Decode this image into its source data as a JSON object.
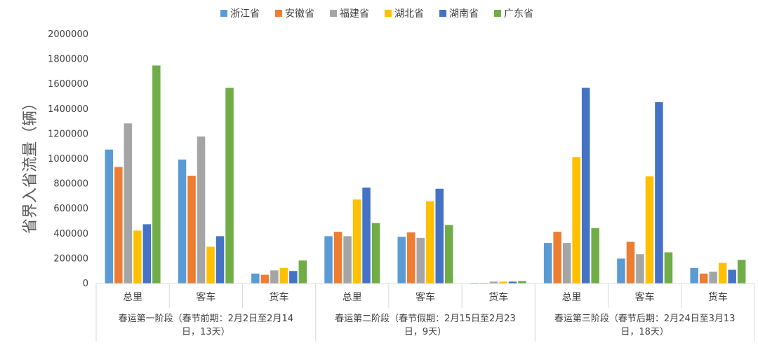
{
  "chart_data": {
    "type": "bar",
    "ylabel": "省界入省流量（辆）",
    "ylim": [
      0,
      2000000
    ],
    "yticks": [
      "0",
      "200000",
      "400000",
      "600000",
      "800000",
      "1000000",
      "1200000",
      "1400000",
      "1600000",
      "1800000",
      "2000000"
    ],
    "legend_position": "top",
    "grid": false,
    "categories": [
      "总里",
      "客车",
      "货车",
      "总里",
      "客车",
      "货车",
      "总里",
      "客车",
      "货车"
    ],
    "groups": [
      {
        "label_line1": "春运第一阶段（春节前期：2月2日至2月14",
        "label_line2": "日，13天）"
      },
      {
        "label_line1": "春运第二阶段（春节假期：2月15日至2月23",
        "label_line2": "日，9天）"
      },
      {
        "label_line1": "春运第三阶段（春节后期：2月24日至3月13",
        "label_line2": "日，18天）"
      }
    ],
    "series": [
      {
        "name": "浙江省",
        "color": "#5B9BD5",
        "values": [
          1075000,
          995000,
          80000,
          380000,
          375000,
          5000,
          325000,
          200000,
          125000
        ]
      },
      {
        "name": "安徽省",
        "color": "#ED7D31",
        "values": [
          935000,
          865000,
          70000,
          415000,
          410000,
          5000,
          415000,
          335000,
          80000
        ]
      },
      {
        "name": "福建省",
        "color": "#A5A5A5",
        "values": [
          1285000,
          1180000,
          105000,
          380000,
          365000,
          15000,
          325000,
          235000,
          95000
        ]
      },
      {
        "name": "湖北省",
        "color": "#FFC000",
        "values": [
          425000,
          295000,
          125000,
          675000,
          660000,
          15000,
          1015000,
          860000,
          165000
        ]
      },
      {
        "name": "湖南省",
        "color": "#4472C4",
        "values": [
          475000,
          380000,
          100000,
          770000,
          760000,
          15000,
          1570000,
          1455000,
          110000
        ]
      },
      {
        "name": "广东省",
        "color": "#70AD47",
        "values": [
          1750000,
          1570000,
          185000,
          485000,
          470000,
          20000,
          445000,
          250000,
          190000
        ]
      }
    ]
  }
}
